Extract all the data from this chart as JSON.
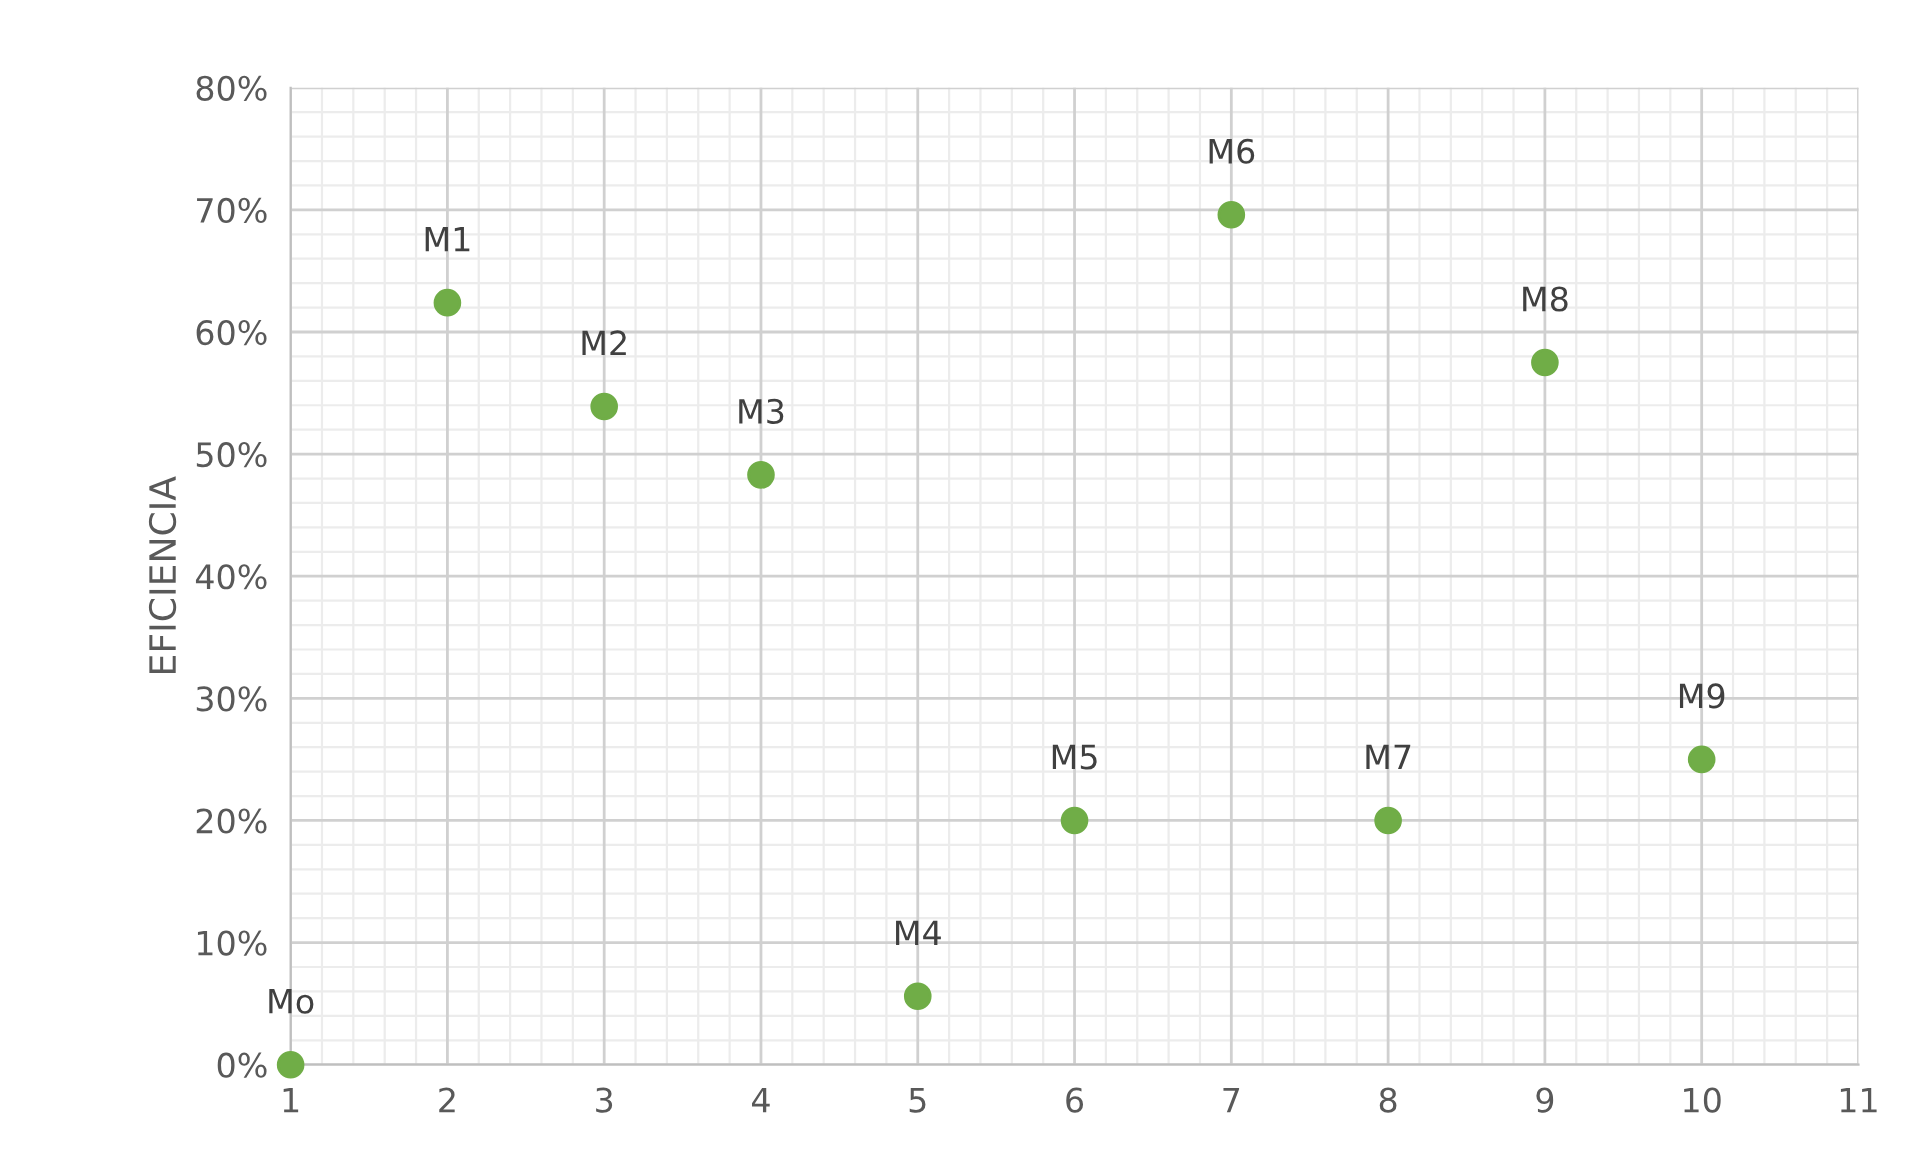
{
  "chart_data": {
    "type": "scatter",
    "ylabel": "EFICIENCIA",
    "x": [
      1,
      2,
      3,
      4,
      5,
      6,
      7,
      8,
      9,
      10
    ],
    "series": [
      {
        "color": "#70ad47",
        "values": [
          0,
          62.4,
          53.9,
          48.3,
          5.6,
          20,
          69.6,
          20,
          57.5,
          25
        ]
      }
    ],
    "marker": "circle",
    "grid": true,
    "xlim": [
      1,
      11
    ],
    "xticks": [
      1,
      2,
      3,
      4,
      5,
      6,
      7,
      8,
      9,
      10,
      11
    ],
    "ylim": [
      0,
      80
    ],
    "yticks": [
      {
        "value": 0,
        "label": "0%"
      },
      {
        "value": 10,
        "label": "10%"
      },
      {
        "value": 20,
        "label": "20%"
      },
      {
        "value": 30,
        "label": "30%"
      },
      {
        "value": 40,
        "label": "40%"
      },
      {
        "value": 50,
        "label": "50%"
      },
      {
        "value": 60,
        "label": "60%"
      },
      {
        "value": 70,
        "label": "70%"
      },
      {
        "value": 80,
        "label": "80%"
      }
    ],
    "annotations": [
      {
        "text": "Mo",
        "x": 1,
        "y": 0
      },
      {
        "text": "M1",
        "x": 2,
        "y": 62.4
      },
      {
        "text": "M2",
        "x": 3,
        "y": 53.9
      },
      {
        "text": "M3",
        "x": 4,
        "y": 48.3
      },
      {
        "text": "M4",
        "x": 5,
        "y": 5.6
      },
      {
        "text": "M5",
        "x": 6,
        "y": 20
      },
      {
        "text": "M6",
        "x": 7,
        "y": 69.6
      },
      {
        "text": "M7",
        "x": 8,
        "y": 20
      },
      {
        "text": "M8",
        "x": 9,
        "y": 57.5
      },
      {
        "text": "M9",
        "x": 10,
        "y": 25
      }
    ]
  }
}
